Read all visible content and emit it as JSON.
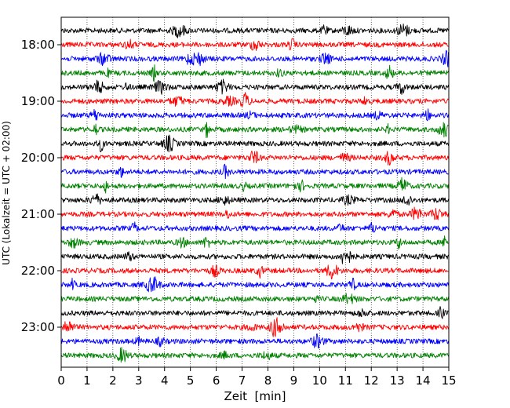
{
  "chart_data": {
    "type": "line",
    "subtype": "helicorder",
    "xlabel": "Zeit  [min]",
    "ylabel": "UTC (Lokalzeit = UTC + 02:00)",
    "xlim": [
      0,
      15
    ],
    "x_ticks": [
      0,
      1,
      2,
      3,
      4,
      5,
      6,
      7,
      8,
      9,
      10,
      11,
      12,
      13,
      14,
      15
    ],
    "x_tick_labels": [
      "0",
      "1",
      "2",
      "3",
      "4",
      "5",
      "6",
      "7",
      "8",
      "9",
      "10",
      "11",
      "12",
      "13",
      "14",
      "15"
    ],
    "y_tick_labels": [
      "18:00",
      "19:00",
      "20:00",
      "21:00",
      "22:00",
      "23:00"
    ],
    "row_minutes": 15,
    "trace_color_cycle": [
      "#000000",
      "#ff0000",
      "#0000ff",
      "#008000"
    ],
    "traces": [
      {
        "start": "17:45"
      },
      {
        "start": "18:00"
      },
      {
        "start": "18:15"
      },
      {
        "start": "18:30"
      },
      {
        "start": "18:45"
      },
      {
        "start": "19:00"
      },
      {
        "start": "19:15"
      },
      {
        "start": "19:30"
      },
      {
        "start": "19:45"
      },
      {
        "start": "20:00"
      },
      {
        "start": "20:15"
      },
      {
        "start": "20:30"
      },
      {
        "start": "20:45"
      },
      {
        "start": "21:00"
      },
      {
        "start": "21:15"
      },
      {
        "start": "21:30"
      },
      {
        "start": "21:45"
      },
      {
        "start": "22:00"
      },
      {
        "start": "22:15"
      },
      {
        "start": "22:30"
      },
      {
        "start": "22:45"
      },
      {
        "start": "23:00"
      },
      {
        "start": "23:15"
      },
      {
        "start": "23:30"
      }
    ],
    "vertical_grid": "dotted",
    "legend": "none"
  }
}
